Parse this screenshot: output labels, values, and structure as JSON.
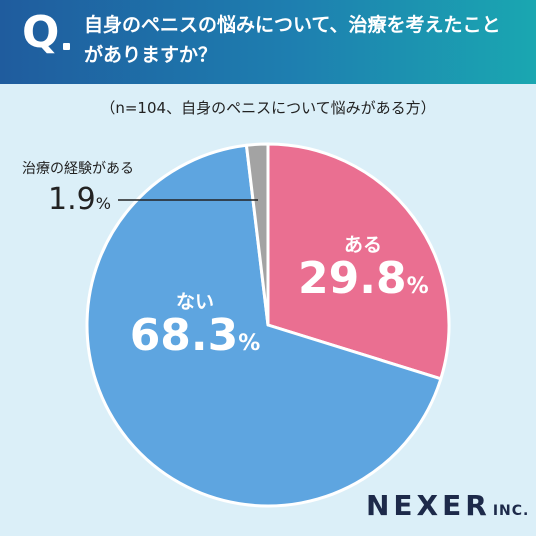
{
  "header": {
    "q_label": "Q",
    "question_line1": "自身のペニスの悩みについて、治療を考えたこと",
    "question_line2": "がありますか？"
  },
  "note": "（n=104、自身のペニスについて悩みがある方）",
  "logo": {
    "name": "NEXER",
    "suffix": "INC."
  },
  "chart_data": {
    "type": "pie",
    "title": "自身のペニスの悩みについて、治療を考えたことがありますか？",
    "subtitle": "（n=104、自身のペニスについて悩みがある方）",
    "unit": "%",
    "slices": [
      {
        "label": "ある",
        "value": 29.8,
        "color": "#ea6f91"
      },
      {
        "label": "ない",
        "value": 68.3,
        "color": "#5ea5e0"
      },
      {
        "label": "治療の経験がある",
        "value": 1.9,
        "color": "#a3a3a3"
      }
    ]
  }
}
